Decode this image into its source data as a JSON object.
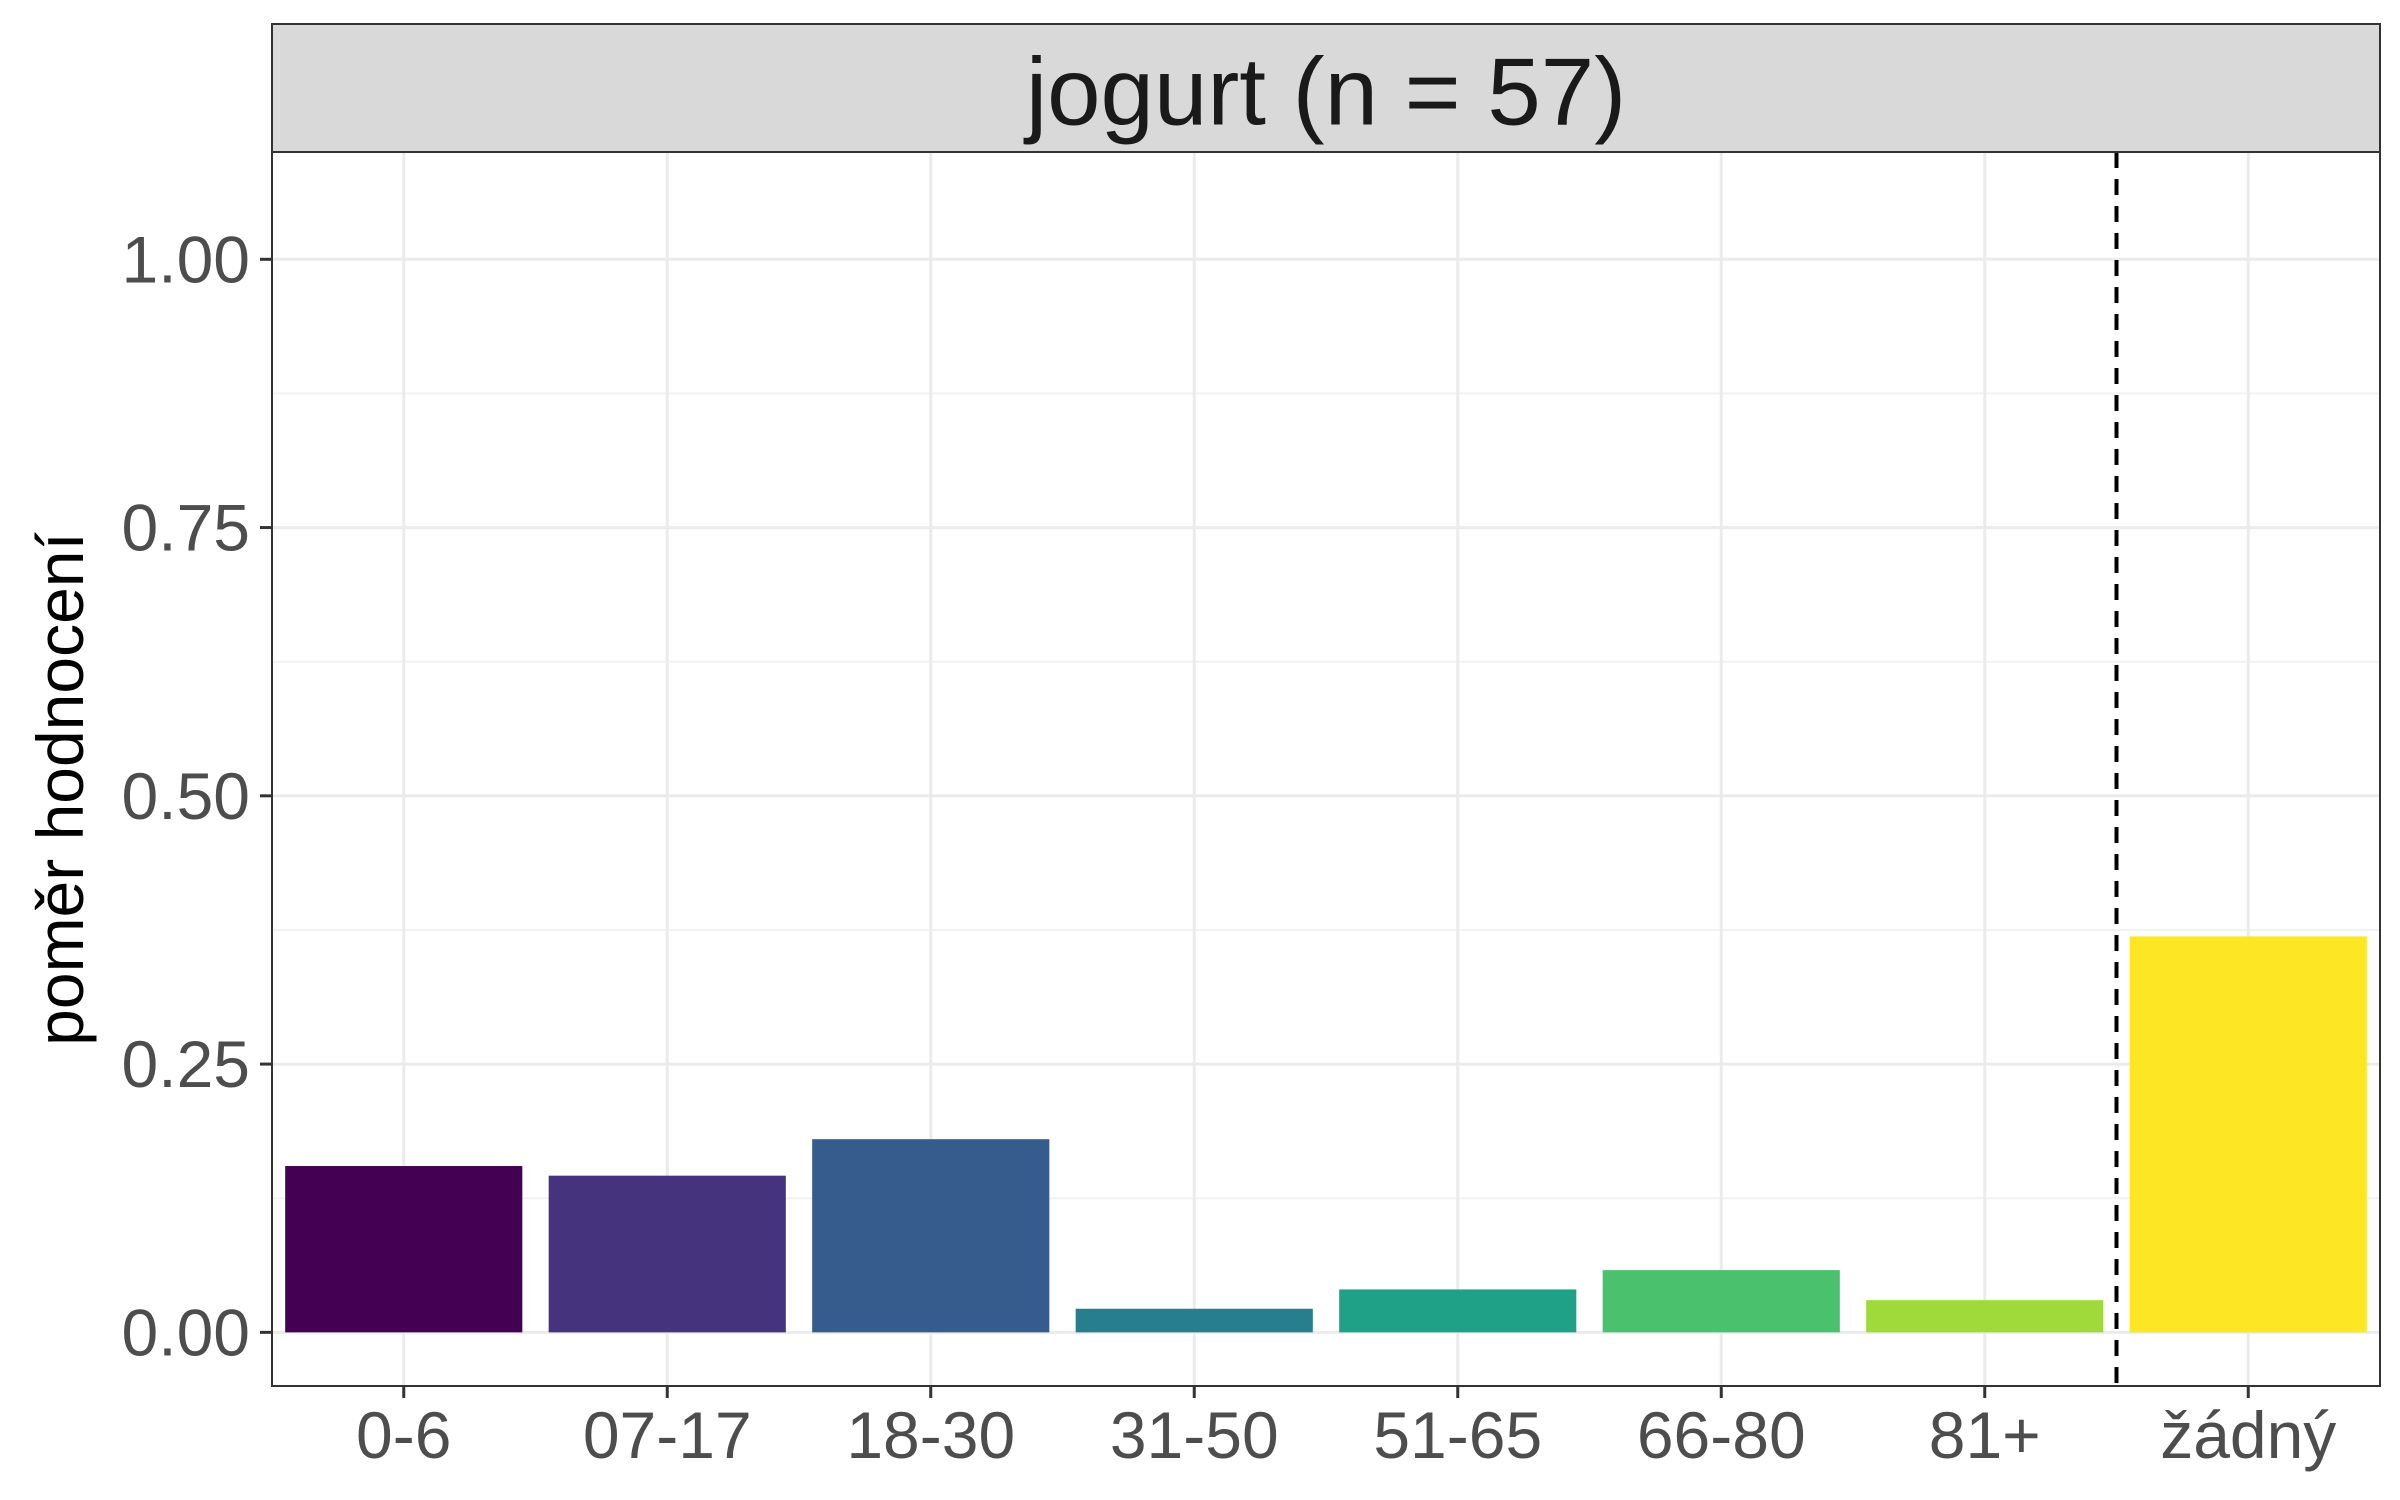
{
  "chart_data": {
    "type": "bar",
    "panel_title": "jogurt (n = 57)",
    "ylabel": "poměr hodnocení",
    "xlabel": "",
    "categories": [
      "0-6",
      "07-17",
      "18-30",
      "31-50",
      "51-65",
      "66-80",
      "81+",
      "žádný"
    ],
    "values": [
      0.155,
      0.146,
      0.18,
      0.022,
      0.04,
      0.058,
      0.03,
      0.369
    ],
    "colors": [
      "#440154",
      "#46337E",
      "#365C8D",
      "#277F8E",
      "#1FA187",
      "#4AC16D",
      "#9FDA3A",
      "#FDE725"
    ],
    "ylim": [
      -0.05,
      1.1
    ],
    "yticks": [
      0.0,
      0.25,
      0.5,
      0.75,
      1.0
    ],
    "ytick_labels": [
      "0.00",
      "0.25",
      "0.50",
      "0.75",
      "1.00"
    ],
    "separator_between": [
      "81+",
      "žádný"
    ],
    "grid": true,
    "colors_ui": {
      "strip_fill": "#d9d9d9",
      "grid_major": "#ebebeb",
      "grid_minor": "#f2f2f2",
      "panel_border": "#333333",
      "tick_color": "#333333"
    }
  }
}
